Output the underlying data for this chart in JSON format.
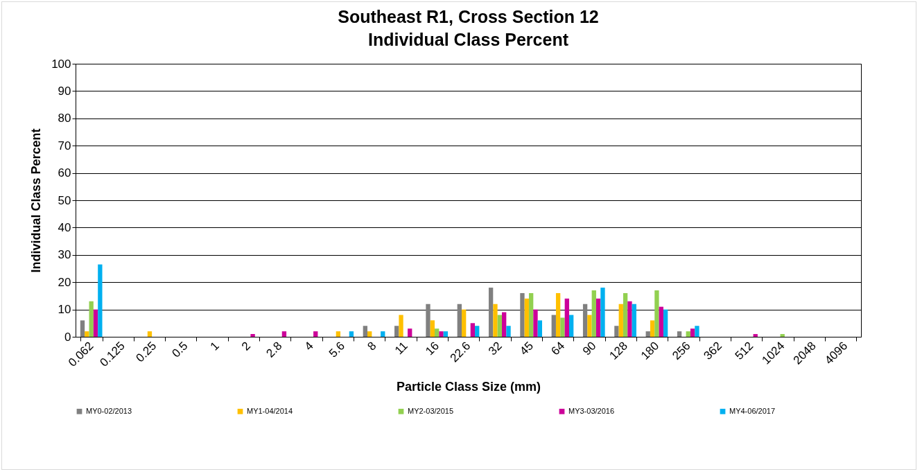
{
  "chart_data": {
    "type": "bar",
    "title": "Southeast R1, Cross Section 12",
    "subtitle": "Individual Class Percent",
    "xlabel": "Particle Class Size (mm)",
    "ylabel": "Individual Class Percent",
    "categories": [
      "0.062",
      "0.125",
      "0.25",
      "0.5",
      "1",
      "2",
      "2.8",
      "4",
      "5.6",
      "8",
      "11",
      "16",
      "22.6",
      "32",
      "45",
      "64",
      "90",
      "128",
      "180",
      "256",
      "362",
      "512",
      "1024",
      "2048",
      "4096"
    ],
    "series": [
      {
        "name": "MY0-02/2013",
        "color": "#808080",
        "values": [
          6,
          0,
          0,
          0,
          0,
          0,
          0,
          0,
          0,
          4,
          4,
          12,
          12,
          18,
          16,
          8,
          12,
          4,
          2,
          2,
          0,
          0,
          0,
          0,
          0
        ]
      },
      {
        "name": "MY1-04/2014",
        "color": "#ffc000",
        "values": [
          2,
          0,
          2,
          0,
          0,
          0,
          0,
          0,
          2,
          2,
          8,
          6,
          10,
          12,
          14,
          16,
          8,
          12,
          6,
          0,
          0,
          0,
          0,
          0,
          0
        ]
      },
      {
        "name": "MY2-03/2015",
        "color": "#92d050",
        "values": [
          13,
          0,
          0,
          0,
          0,
          0,
          0,
          0,
          0,
          0,
          0,
          3,
          0,
          8,
          16,
          7,
          17,
          16,
          17,
          2,
          0,
          0,
          1,
          0,
          0
        ]
      },
      {
        "name": "MY3-03/2016",
        "color": "#cc0099",
        "values": [
          10,
          0,
          0,
          0,
          0,
          1,
          2,
          2,
          0,
          0,
          3,
          2,
          5,
          9,
          10,
          14,
          14,
          13,
          11,
          3,
          0,
          1,
          0,
          0,
          0
        ]
      },
      {
        "name": "MY4-06/2017",
        "color": "#00b0f0",
        "values": [
          26.5,
          0,
          0,
          0,
          0,
          0,
          0,
          0,
          2,
          2,
          0,
          2,
          4,
          4,
          6,
          8,
          18,
          12,
          10,
          4,
          0,
          0,
          0,
          0,
          0
        ]
      }
    ],
    "ylim": [
      0,
      100
    ],
    "yticks": [
      0,
      10,
      20,
      30,
      40,
      50,
      60,
      70,
      80,
      90,
      100
    ],
    "grid": "y",
    "legend": "bottom"
  }
}
